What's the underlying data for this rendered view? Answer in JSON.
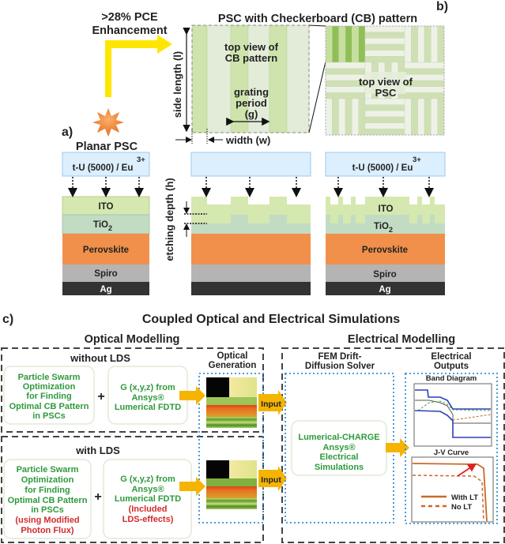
{
  "enhancement": {
    "line1": ">28% PCE",
    "line2": "Enhancement"
  },
  "panel_a": {
    "label": "a)",
    "title": "Planar PSC",
    "top_layer": "t-U (5000) / Eu",
    "top_layer_sup": "3+",
    "layers": {
      "ito": "ITO",
      "tio2": "TiO",
      "tio2_sub": "2",
      "perovskite": "Perovskite",
      "spiro": "Spiro",
      "ag": "Ag"
    },
    "etching_depth": "etching depth (h)"
  },
  "panel_b": {
    "label": "b)",
    "title": "PSC with Checkerboard (CB) pattern",
    "cb_view": [
      "top view of",
      "CB pattern"
    ],
    "grating": [
      "grating",
      "period",
      "(g)"
    ],
    "side_length": "side length (l)",
    "width": "width (w)",
    "psc_view": [
      "top view of",
      "PSC"
    ]
  },
  "panel_c": {
    "label": "c)",
    "title": "Coupled Optical and Electrical Simulations",
    "optical": {
      "title": "Optical Modelling",
      "optical_generation": [
        "Optical",
        "Generation"
      ],
      "without_lds": {
        "title": "without LDS",
        "pso": [
          "Particle Swarm",
          "Optimization",
          "for Finding",
          "Optimal CB Pattern",
          "in PSCs"
        ],
        "fdtd": [
          "G (x,y,z) from",
          "Ansys®",
          "Lumerical FDTD"
        ]
      },
      "with_lds": {
        "title": "with LDS",
        "pso": [
          "Particle Swarm",
          "Optimization",
          "for Finding",
          "Optimal CB Pattern",
          "in PSCs"
        ],
        "pso_red": [
          "(using Modified",
          "Photon Flux)"
        ],
        "fdtd": [
          "G (x,y,z) from",
          "Ansys®",
          "Lumerical FDTD"
        ],
        "fdtd_red": [
          "(Included",
          "LDS-effects)"
        ]
      },
      "plus": "+",
      "input": "Input"
    },
    "electrical": {
      "title": "Electrical Modelling",
      "solver": [
        "FEM Drift-",
        "Diffusion Solver"
      ],
      "charge": [
        "Lumerical-CHARGE",
        "Ansys®",
        "Electrical",
        "Simulations"
      ],
      "outputs": [
        "Electrical",
        "Outputs"
      ],
      "band_diagram": "Band Diagram",
      "jv_curve": "J-V Curve",
      "legend": {
        "with_lt": "With LT",
        "no_lt": "No LT"
      }
    }
  },
  "colors": {
    "ito": "#d4e8af",
    "tio2": "#c2dcc4",
    "perovskite": "#f0904a",
    "spiro": "#b4b4b4",
    "ag": "#333333",
    "top_layer": "#dcefff",
    "sun": "#f08a3c",
    "arrow_yellow": "#ffe600",
    "input_arrow": "#f5b400",
    "green_text": "#2e9a3c",
    "red_text": "#d42a2a",
    "band_blue": "#2b3fb8",
    "jv_orange": "#c9692a"
  }
}
